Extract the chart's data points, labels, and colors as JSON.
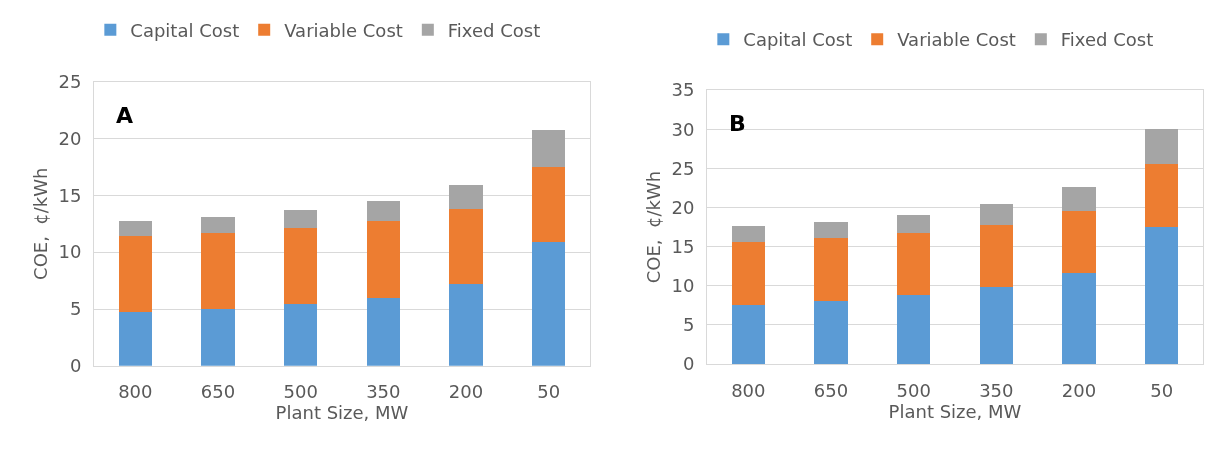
{
  "chart_data": [
    {
      "type": "bar",
      "stacked": true,
      "annotations": [
        "A"
      ],
      "xlabel": "Plant Size, MW",
      "ylabel": "COE,  ¢/kWh",
      "categories": [
        "800",
        "650",
        "500",
        "350",
        "200",
        "50"
      ],
      "series": [
        {
          "name": "Capital Cost",
          "color": "#5b9bd5",
          "values": [
            4.7,
            5.0,
            5.4,
            6.0,
            7.2,
            10.9
          ]
        },
        {
          "name": "Variable Cost",
          "color": "#ed7d31",
          "values": [
            6.7,
            6.7,
            6.7,
            6.7,
            6.6,
            6.6
          ]
        },
        {
          "name": "Fixed Cost",
          "color": "#a5a5a5",
          "values": [
            1.3,
            1.4,
            1.6,
            1.8,
            2.1,
            3.2
          ]
        }
      ],
      "ylim": [
        0,
        25
      ],
      "yticks": [
        0,
        5,
        10,
        15,
        20,
        25
      ],
      "grid": "y",
      "legend": "top"
    },
    {
      "type": "bar",
      "stacked": true,
      "annotations": [
        "B"
      ],
      "xlabel": "Plant Size, MW",
      "ylabel": "COE,  ¢/kWh",
      "categories": [
        "800",
        "650",
        "500",
        "350",
        "200",
        "50"
      ],
      "series": [
        {
          "name": "Capital Cost",
          "color": "#5b9bd5",
          "values": [
            7.6,
            8.1,
            8.8,
            9.8,
            11.6,
            17.5
          ]
        },
        {
          "name": "Variable Cost",
          "color": "#ed7d31",
          "values": [
            8.0,
            8.0,
            8.0,
            8.0,
            8.0,
            8.0
          ]
        },
        {
          "name": "Fixed Cost",
          "color": "#a5a5a5",
          "values": [
            2.0,
            2.1,
            2.3,
            2.6,
            3.0,
            4.6
          ]
        }
      ],
      "ylim": [
        0,
        35
      ],
      "yticks": [
        0,
        5,
        10,
        15,
        20,
        25,
        30,
        35
      ],
      "grid": "y",
      "legend": "top"
    }
  ]
}
